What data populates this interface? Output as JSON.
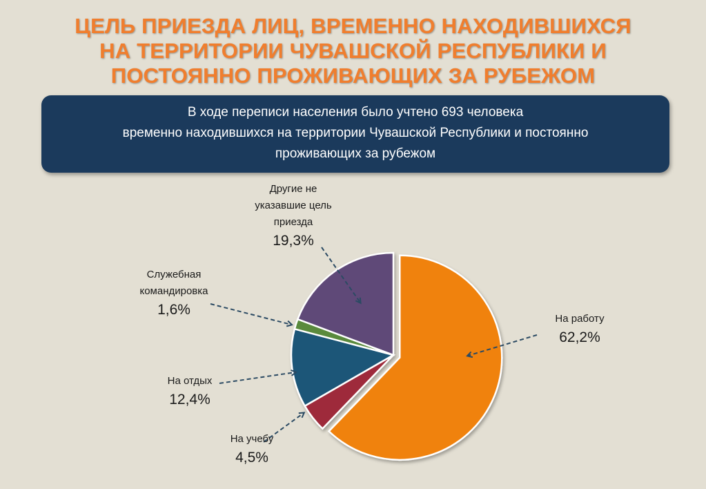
{
  "title": {
    "lines": [
      "ЦЕЛЬ ПРИЕЗДА ЛИЦ, ВРЕМЕННО НАХОДИВШИХСЯ",
      "НА ТЕРРИТОРИИ  ЧУВАШСКОЙ РЕСПУБЛИКИ И",
      "ПОСТОЯННО ПРОЖИВАЮЩИХ ЗА РУБЕЖОМ"
    ]
  },
  "banner": {
    "lines": [
      "В ходе переписи населения было учтено 693 человека",
      "временно находившихся на территории Чувашской Республики и постоянно",
      "проживающих за рубежом"
    ]
  },
  "labels": {
    "other": {
      "name_lines": [
        "Другие не",
        "указавшие цель",
        "приезда"
      ],
      "pct": "19,3%"
    },
    "business": {
      "name_lines": [
        "Служебная",
        "командировка"
      ],
      "pct": "1,6%"
    },
    "rest": {
      "name_lines": [
        "На отдых"
      ],
      "pct": "12,4%"
    },
    "study": {
      "name_lines": [
        "На учебу"
      ],
      "pct": "4,5%"
    },
    "work": {
      "name_lines": [
        "На работу"
      ],
      "pct": "62,2%"
    }
  },
  "chart_data": {
    "type": "pie",
    "title": "ЦЕЛЬ ПРИЕЗДА ЛИЦ, ВРЕМЕННО НАХОДИВШИХСЯ НА ТЕРРИТОРИИ  ЧУВАШСКОЙ РЕСПУБЛИКИ И ПОСТОЯННО ПРОЖИВАЮЩИХ ЗА РУБЕЖОМ",
    "slices": [
      {
        "key": "work",
        "label": "На работу",
        "value": 62.2,
        "color": "#f0820f",
        "exploded": true
      },
      {
        "key": "study",
        "label": "На учебу",
        "value": 4.5,
        "color": "#9e2a3a"
      },
      {
        "key": "rest",
        "label": "На отдых",
        "value": 12.4,
        "color": "#1f5678"
      },
      {
        "key": "business",
        "label": "Служебная командировка",
        "value": 1.6,
        "color": "#5a8a3c"
      },
      {
        "key": "other",
        "label": "Другие не указавшие цель приезда",
        "value": 19.3,
        "color": "#5e4a78"
      }
    ],
    "start_angle_deg": 0,
    "direction": "clockwise",
    "legend": "none"
  },
  "colors": {
    "title": "#f07e2e",
    "banner_bg": "#1b3a5c",
    "banner_text": "#ffffff",
    "background": "#e3dfd3",
    "arrow": "#2b4a63"
  }
}
